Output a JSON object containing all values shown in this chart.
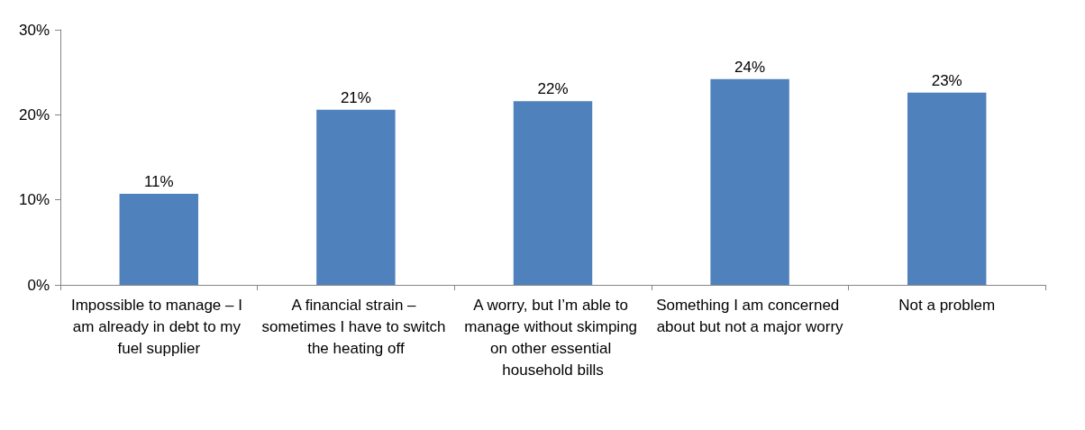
{
  "chart_data": {
    "type": "bar",
    "categories": [
      "Impossible to manage – I am already in debt to my fuel supplier",
      "A financial strain – sometimes I have to switch the heating off",
      "A worry, but I’m able to manage without skimping on other essential household bills",
      "Something I am concerned about but not a major worry",
      "Not a problem"
    ],
    "values": [
      10.7,
      20.6,
      21.6,
      24.2,
      22.6
    ],
    "value_labels": [
      "11%",
      "21%",
      "22%",
      "24%",
      "23%"
    ],
    "color": "#4f81bd",
    "ylim": [
      0,
      30
    ],
    "yticks": [
      {
        "value": 0,
        "label": "0%"
      },
      {
        "value": 10,
        "label": "10%"
      },
      {
        "value": 20,
        "label": "20%"
      },
      {
        "value": 30,
        "label": "30%"
      }
    ],
    "grid": false
  }
}
